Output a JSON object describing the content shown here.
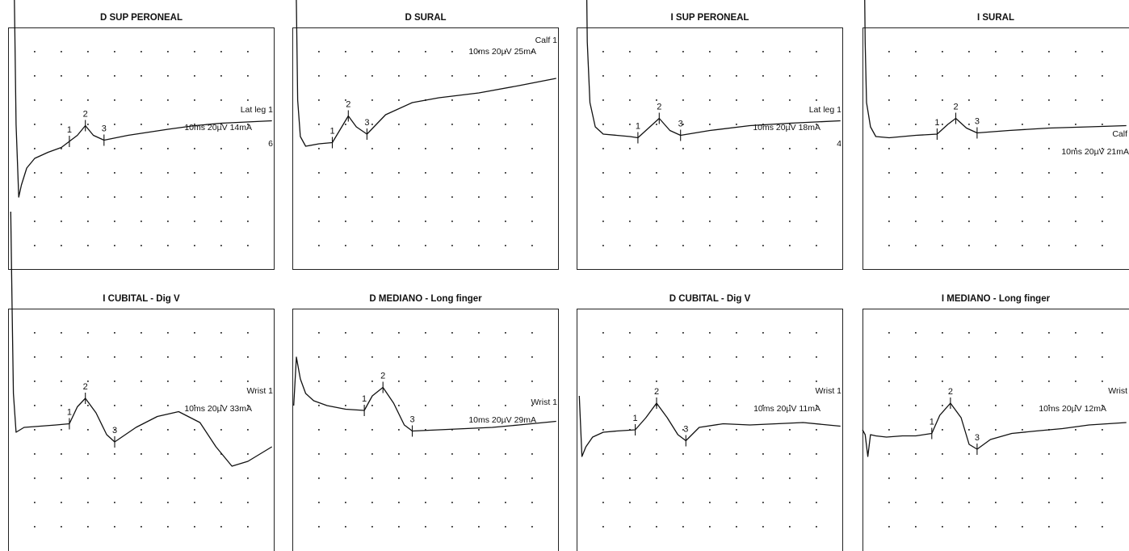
{
  "chart_data": [
    {
      "type": "line",
      "title": "D SUP PERONEAL",
      "site_label": "Lat leg 1",
      "settings_label": "10ms 20µV 14mA",
      "extra_label": "6",
      "markers": [
        {
          "label": "1",
          "x": 2.3
        },
        {
          "label": "2",
          "x": 2.9
        },
        {
          "label": "3",
          "x": 3.6
        }
      ],
      "x": [
        0.2,
        0.25,
        0.3,
        0.4,
        0.5,
        0.7,
        1.0,
        1.5,
        2.0,
        2.3,
        2.6,
        2.9,
        3.2,
        3.6,
        4.5,
        6,
        7,
        8,
        9.9
      ],
      "y": [
        9,
        5,
        1,
        -2,
        -1.5,
        -0.8,
        -0.4,
        -0.15,
        0.05,
        0.3,
        0.55,
        0.95,
        0.55,
        0.35,
        0.55,
        0.8,
        0.95,
        1.05,
        1.15
      ]
    },
    {
      "type": "line",
      "title": "D SURAL",
      "site_label": "Calf 1",
      "settings_label": "10ms 20µV 25mA",
      "extra_label": "",
      "markers": [
        {
          "label": "1",
          "x": 1.5
        },
        {
          "label": "2",
          "x": 2.1
        },
        {
          "label": "3",
          "x": 2.8
        }
      ],
      "x": [
        0.1,
        0.15,
        0.2,
        0.3,
        0.5,
        1.0,
        1.5,
        1.8,
        2.1,
        2.4,
        2.8,
        3.5,
        4.5,
        5.5,
        7,
        8.5,
        9.9
      ],
      "y": [
        9,
        6,
        2,
        0.5,
        0.1,
        0.2,
        0.25,
        0.8,
        1.35,
        0.9,
        0.6,
        1.4,
        1.9,
        2.1,
        2.3,
        2.6,
        2.9
      ]
    },
    {
      "type": "line",
      "title": "I SUP PERONEAL",
      "site_label": "Lat leg 1",
      "settings_label": "10ms 20µV 18mA",
      "extra_label": "4",
      "markers": [
        {
          "label": "1",
          "x": 2.3
        },
        {
          "label": "2",
          "x": 3.1
        },
        {
          "label": "3",
          "x": 3.9
        }
      ],
      "x": [
        0.35,
        0.4,
        0.5,
        0.7,
        1.0,
        1.5,
        2.0,
        2.3,
        2.7,
        3.1,
        3.5,
        3.9,
        5,
        6.5,
        8,
        9.9
      ],
      "y": [
        9,
        4,
        1.5,
        0.5,
        0.2,
        0.15,
        0.1,
        0.05,
        0.45,
        0.85,
        0.35,
        0.15,
        0.35,
        0.55,
        0.65,
        0.75
      ]
    },
    {
      "type": "line",
      "title": "I SURAL",
      "site_label": "Calf",
      "settings_label": "10ms 20µV 21mA",
      "extra_label": "",
      "markers": [
        {
          "label": "1",
          "x": 2.8
        },
        {
          "label": "2",
          "x": 3.5
        },
        {
          "label": "3",
          "x": 4.3
        }
      ],
      "x": [
        0.05,
        0.1,
        0.15,
        0.3,
        0.5,
        1.0,
        1.5,
        2.0,
        2.8,
        3.2,
        3.5,
        3.9,
        4.3,
        5.5,
        7,
        8.5,
        9.9
      ],
      "y": [
        9,
        4,
        1.5,
        0.5,
        0.1,
        0.05,
        0.1,
        0.15,
        0.2,
        0.6,
        0.85,
        0.45,
        0.25,
        0.35,
        0.45,
        0.5,
        0.55
      ]
    },
    {
      "type": "line",
      "title": "I CUBITAL - Dig V",
      "site_label": "Wrist 1",
      "settings_label": "10ms 20µV 33mA",
      "extra_label": "",
      "markers": [
        {
          "label": "1",
          "x": 2.3
        },
        {
          "label": "2",
          "x": 2.9
        },
        {
          "label": "3",
          "x": 4.0
        }
      ],
      "x": [
        0.1,
        0.15,
        0.2,
        0.3,
        0.6,
        1.2,
        1.8,
        2.3,
        2.6,
        2.9,
        3.3,
        3.7,
        4.0,
        4.8,
        5.6,
        6.4,
        7.2,
        7.8,
        8.4,
        9.0,
        9.9
      ],
      "y": [
        9,
        5,
        1.5,
        -0.1,
        0.1,
        0.15,
        0.2,
        0.25,
        0.95,
        1.3,
        0.7,
        -0.2,
        -0.5,
        0.1,
        0.55,
        0.75,
        0.3,
        -0.7,
        -1.5,
        -1.3,
        -0.7
      ]
    },
    {
      "type": "line",
      "title": "D MEDIANO - Long finger",
      "site_label": "Wrist 1",
      "settings_label": "10ms 20µV 29mA",
      "extra_label": "",
      "markers": [
        {
          "label": "1",
          "x": 2.7
        },
        {
          "label": "2",
          "x": 3.4
        },
        {
          "label": "3",
          "x": 4.5
        }
      ],
      "x": [
        0.05,
        0.15,
        0.3,
        0.5,
        0.8,
        1.3,
        2.0,
        2.7,
        3.0,
        3.4,
        3.8,
        4.2,
        4.5,
        5.5,
        6.5,
        7.5,
        8.5,
        9.9
      ],
      "y": [
        0.5,
        2.5,
        1.6,
        1.0,
        0.7,
        0.5,
        0.35,
        0.3,
        0.9,
        1.25,
        0.6,
        -0.3,
        -0.55,
        -0.5,
        -0.45,
        -0.4,
        -0.3,
        -0.15
      ]
    },
    {
      "type": "line",
      "title": "D CUBITAL - Dig V",
      "site_label": "Wrist 1",
      "settings_label": "10ms 20µV 11mA",
      "extra_label": "",
      "markers": [
        {
          "label": "1",
          "x": 2.2
        },
        {
          "label": "2",
          "x": 3.0
        },
        {
          "label": "3",
          "x": 4.1
        }
      ],
      "x": [
        0.1,
        0.2,
        0.35,
        0.6,
        1.0,
        1.5,
        2.2,
        2.6,
        3.0,
        3.4,
        3.8,
        4.1,
        4.6,
        5.5,
        6.5,
        7.5,
        8.5,
        9.9
      ],
      "y": [
        1.5,
        -1.0,
        -0.6,
        -0.2,
        0.0,
        0.05,
        0.1,
        0.6,
        1.2,
        0.6,
        -0.1,
        -0.35,
        0.2,
        0.35,
        0.3,
        0.35,
        0.4,
        0.25
      ]
    },
    {
      "type": "line",
      "title": "I MEDIANO - Long finger",
      "site_label": "Wrist",
      "settings_label": "10ms 20µV 12mA",
      "extra_label": "",
      "markers": [
        {
          "label": "1",
          "x": 2.6
        },
        {
          "label": "2",
          "x": 3.3
        },
        {
          "label": "3",
          "x": 4.3
        }
      ],
      "x": [
        0,
        0.1,
        0.2,
        0.3,
        0.5,
        0.9,
        1.5,
        2.0,
        2.6,
        2.9,
        3.3,
        3.7,
        4.0,
        4.3,
        4.8,
        5.6,
        6.5,
        7.5,
        8.5,
        9.9
      ],
      "y": [
        0.3,
        0.1,
        -0.8,
        0.1,
        0.05,
        0.0,
        0.05,
        0.05,
        0.15,
        0.9,
        1.4,
        0.8,
        -0.3,
        -0.5,
        -0.1,
        0.15,
        0.25,
        0.35,
        0.5,
        0.6
      ]
    }
  ]
}
